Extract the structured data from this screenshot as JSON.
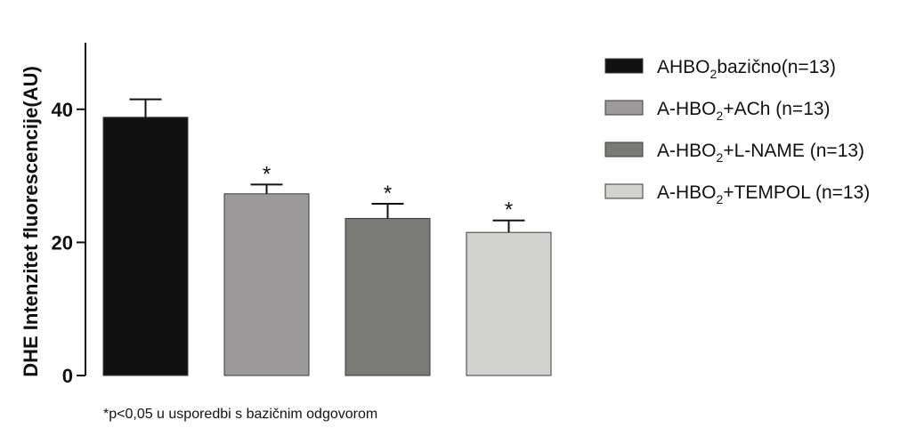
{
  "chart_data": {
    "type": "bar",
    "ylabel": "DHE Intenzitet fluorescencije(AU)",
    "xlabel": "",
    "ylim": [
      0,
      50
    ],
    "yticks": [
      0,
      20,
      40
    ],
    "grid": false,
    "legend_position": "right",
    "series": [
      {
        "legend_main": "AHBO",
        "legend_sub": "2",
        "legend_rest": "bazično(n=13)",
        "value": 38.8,
        "error": 2.7,
        "color": "#111111",
        "mark": ""
      },
      {
        "legend_main": "A-HBO",
        "legend_sub": "2",
        "legend_rest": "+ACh (n=13)",
        "value": 27.3,
        "error": 1.4,
        "color": "#9c9a9a",
        "mark": "*"
      },
      {
        "legend_main": "A-HBO",
        "legend_sub": "2",
        "legend_rest": "+L-NAME (n=13)",
        "value": 23.6,
        "error": 2.2,
        "color": "#7a7a76",
        "mark": "*"
      },
      {
        "legend_main": "A-HBO",
        "legend_sub": "2",
        "legend_rest": "+TEMPOL (n=13)",
        "value": 21.5,
        "error": 1.8,
        "color": "#d2d2d0",
        "mark": "*"
      }
    ],
    "footnote": "*p<0,05 u usporedbi s bazičnim odgovorom"
  }
}
